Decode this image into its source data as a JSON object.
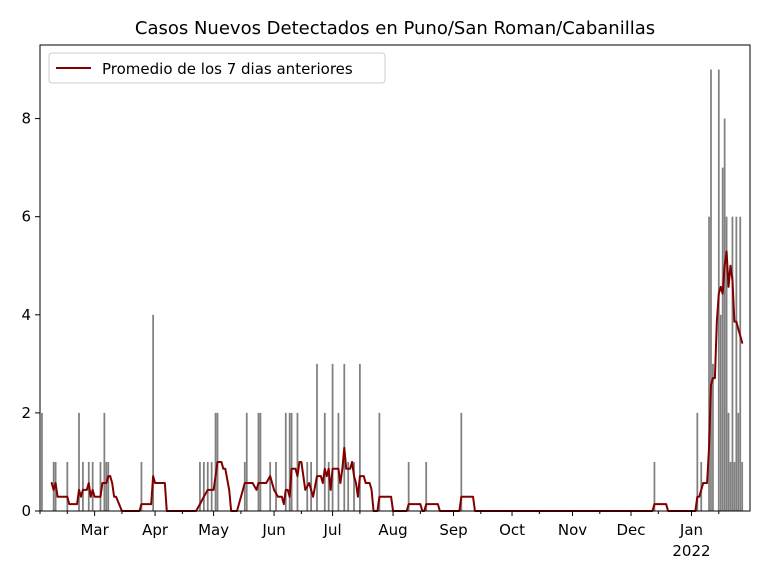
{
  "chart_data": {
    "type": "bar",
    "title": "Casos Nuevos Detectados en Puno/San Roman/Cabanillas",
    "xlabel": "",
    "ylabel": "",
    "x_range": [
      "2021-02-01",
      "2022-01-31"
    ],
    "ylim": [
      0,
      9.5
    ],
    "grid": false,
    "legend_placement": "upper-left",
    "y_ticks": [
      {
        "value": 0,
        "label": "0"
      },
      {
        "value": 2,
        "label": "2"
      },
      {
        "value": 4,
        "label": "4"
      },
      {
        "value": 6,
        "label": "6"
      },
      {
        "value": 8,
        "label": "8"
      }
    ],
    "x_ticks": [
      {
        "date": "2021-03-01",
        "label": "Mar"
      },
      {
        "date": "2021-04-01",
        "label": "Apr"
      },
      {
        "date": "2021-05-01",
        "label": "May"
      },
      {
        "date": "2021-06-01",
        "label": "Jun"
      },
      {
        "date": "2021-07-01",
        "label": "Jul"
      },
      {
        "date": "2021-08-01",
        "label": "Aug"
      },
      {
        "date": "2021-09-01",
        "label": "Sep"
      },
      {
        "date": "2021-10-01",
        "label": "Oct"
      },
      {
        "date": "2021-11-01",
        "label": "Nov"
      },
      {
        "date": "2021-12-01",
        "label": "Dec"
      },
      {
        "date": "2022-01-01",
        "label": "Jan",
        "sublabel": "2022"
      }
    ],
    "bar_color": "#808080",
    "line_color": "#800000",
    "series": [
      {
        "kind": "bar",
        "name": "",
        "points": [
          [
            "2021-02-02",
            2
          ],
          [
            "2021-02-08",
            1
          ],
          [
            "2021-02-09",
            1
          ],
          [
            "2021-02-15",
            1
          ],
          [
            "2021-02-21",
            2
          ],
          [
            "2021-02-23",
            1
          ],
          [
            "2021-02-26",
            1
          ],
          [
            "2021-02-28",
            1
          ],
          [
            "2021-03-04",
            1
          ],
          [
            "2021-03-06",
            2
          ],
          [
            "2021-03-07",
            1
          ],
          [
            "2021-03-08",
            1
          ],
          [
            "2021-03-25",
            1
          ],
          [
            "2021-03-31",
            4
          ],
          [
            "2021-04-24",
            1
          ],
          [
            "2021-04-26",
            1
          ],
          [
            "2021-04-28",
            1
          ],
          [
            "2021-04-30",
            1
          ],
          [
            "2021-05-02",
            2
          ],
          [
            "2021-05-03",
            2
          ],
          [
            "2021-05-17",
            1
          ],
          [
            "2021-05-18",
            2
          ],
          [
            "2021-05-24",
            2
          ],
          [
            "2021-05-25",
            2
          ],
          [
            "2021-05-30",
            1
          ],
          [
            "2021-06-02",
            1
          ],
          [
            "2021-06-07",
            2
          ],
          [
            "2021-06-09",
            2
          ],
          [
            "2021-06-10",
            2
          ],
          [
            "2021-06-13",
            2
          ],
          [
            "2021-06-18",
            1
          ],
          [
            "2021-06-20",
            1
          ],
          [
            "2021-06-23",
            3
          ],
          [
            "2021-06-27",
            2
          ],
          [
            "2021-06-29",
            1
          ],
          [
            "2021-07-01",
            3
          ],
          [
            "2021-07-04",
            2
          ],
          [
            "2021-07-07",
            3
          ],
          [
            "2021-07-09",
            1
          ],
          [
            "2021-07-12",
            1
          ],
          [
            "2021-07-15",
            3
          ],
          [
            "2021-07-25",
            2
          ],
          [
            "2021-08-09",
            1
          ],
          [
            "2021-08-18",
            1
          ],
          [
            "2021-09-05",
            2
          ],
          [
            "2021-12-13",
            1
          ],
          [
            "2022-01-04",
            2
          ],
          [
            "2022-01-06",
            1
          ],
          [
            "2022-01-10",
            6
          ],
          [
            "2022-01-11",
            9
          ],
          [
            "2022-01-12",
            3
          ],
          [
            "2022-01-15",
            9
          ],
          [
            "2022-01-16",
            4
          ],
          [
            "2022-01-17",
            7
          ],
          [
            "2022-01-18",
            8
          ],
          [
            "2022-01-19",
            6
          ],
          [
            "2022-01-20",
            2
          ],
          [
            "2022-01-21",
            1
          ],
          [
            "2022-01-22",
            6
          ],
          [
            "2022-01-23",
            1
          ],
          [
            "2022-01-24",
            6
          ],
          [
            "2022-01-25",
            2
          ],
          [
            "2022-01-26",
            6
          ],
          [
            "2022-01-27",
            1
          ]
        ]
      },
      {
        "kind": "line",
        "name": "Promedio de los 7 dias anteriores",
        "points": [
          [
            "2021-02-07",
            0.57
          ],
          [
            "2021-02-08",
            0.43
          ],
          [
            "2021-02-09",
            0.57
          ],
          [
            "2021-02-10",
            0.29
          ],
          [
            "2021-02-15",
            0.29
          ],
          [
            "2021-02-16",
            0.14
          ],
          [
            "2021-02-20",
            0.14
          ],
          [
            "2021-02-21",
            0.43
          ],
          [
            "2021-02-22",
            0.29
          ],
          [
            "2021-02-23",
            0.43
          ],
          [
            "2021-02-25",
            0.43
          ],
          [
            "2021-02-26",
            0.57
          ],
          [
            "2021-02-27",
            0.29
          ],
          [
            "2021-02-28",
            0.43
          ],
          [
            "2021-03-01",
            0.29
          ],
          [
            "2021-03-04",
            0.29
          ],
          [
            "2021-03-05",
            0.57
          ],
          [
            "2021-03-07",
            0.57
          ],
          [
            "2021-03-08",
            0.71
          ],
          [
            "2021-03-09",
            0.71
          ],
          [
            "2021-03-10",
            0.57
          ],
          [
            "2021-03-11",
            0.29
          ],
          [
            "2021-03-12",
            0.29
          ],
          [
            "2021-03-15",
            0.0
          ],
          [
            "2021-03-24",
            0.0
          ],
          [
            "2021-03-25",
            0.14
          ],
          [
            "2021-03-30",
            0.14
          ],
          [
            "2021-03-31",
            0.71
          ],
          [
            "2021-04-01",
            0.57
          ],
          [
            "2021-04-06",
            0.57
          ],
          [
            "2021-04-07",
            0.0
          ],
          [
            "2021-04-22",
            0.0
          ],
          [
            "2021-04-24",
            0.14
          ],
          [
            "2021-04-26",
            0.29
          ],
          [
            "2021-04-28",
            0.43
          ],
          [
            "2021-05-01",
            0.43
          ],
          [
            "2021-05-02",
            0.71
          ],
          [
            "2021-05-03",
            1.0
          ],
          [
            "2021-05-05",
            1.0
          ],
          [
            "2021-05-06",
            0.86
          ],
          [
            "2021-05-07",
            0.86
          ],
          [
            "2021-05-09",
            0.43
          ],
          [
            "2021-05-10",
            0.0
          ],
          [
            "2021-05-13",
            0.0
          ],
          [
            "2021-05-17",
            0.57
          ],
          [
            "2021-05-21",
            0.57
          ],
          [
            "2021-05-23",
            0.43
          ],
          [
            "2021-05-24",
            0.57
          ],
          [
            "2021-05-28",
            0.57
          ],
          [
            "2021-05-30",
            0.71
          ],
          [
            "2021-06-01",
            0.43
          ],
          [
            "2021-06-03",
            0.29
          ],
          [
            "2021-06-05",
            0.29
          ],
          [
            "2021-06-06",
            0.14
          ],
          [
            "2021-06-07",
            0.43
          ],
          [
            "2021-06-08",
            0.43
          ],
          [
            "2021-06-09",
            0.29
          ],
          [
            "2021-06-10",
            0.86
          ],
          [
            "2021-06-12",
            0.86
          ],
          [
            "2021-06-13",
            0.71
          ],
          [
            "2021-06-14",
            1.0
          ],
          [
            "2021-06-15",
            1.0
          ],
          [
            "2021-06-17",
            0.43
          ],
          [
            "2021-06-19",
            0.57
          ],
          [
            "2021-06-21",
            0.29
          ],
          [
            "2021-06-23",
            0.71
          ],
          [
            "2021-06-25",
            0.71
          ],
          [
            "2021-06-26",
            0.57
          ],
          [
            "2021-06-27",
            0.86
          ],
          [
            "2021-06-28",
            0.71
          ],
          [
            "2021-06-29",
            0.86
          ],
          [
            "2021-06-30",
            0.43
          ],
          [
            "2021-07-01",
            0.86
          ],
          [
            "2021-07-04",
            0.86
          ],
          [
            "2021-07-05",
            0.57
          ],
          [
            "2021-07-06",
            0.86
          ],
          [
            "2021-07-07",
            1.29
          ],
          [
            "2021-07-08",
            0.86
          ],
          [
            "2021-07-10",
            0.86
          ],
          [
            "2021-07-11",
            1.0
          ],
          [
            "2021-07-12",
            0.71
          ],
          [
            "2021-07-13",
            0.57
          ],
          [
            "2021-07-14",
            0.29
          ],
          [
            "2021-07-15",
            0.71
          ],
          [
            "2021-07-17",
            0.71
          ],
          [
            "2021-07-18",
            0.57
          ],
          [
            "2021-07-20",
            0.57
          ],
          [
            "2021-07-21",
            0.43
          ],
          [
            "2021-07-22",
            0.0
          ],
          [
            "2021-07-24",
            0.0
          ],
          [
            "2021-07-25",
            0.29
          ],
          [
            "2021-07-31",
            0.29
          ],
          [
            "2021-08-01",
            0.0
          ],
          [
            "2021-08-08",
            0.0
          ],
          [
            "2021-08-09",
            0.14
          ],
          [
            "2021-08-15",
            0.14
          ],
          [
            "2021-08-16",
            0.0
          ],
          [
            "2021-08-17",
            0.0
          ],
          [
            "2021-08-18",
            0.14
          ],
          [
            "2021-08-24",
            0.14
          ],
          [
            "2021-08-25",
            0.0
          ],
          [
            "2021-09-04",
            0.0
          ],
          [
            "2021-09-05",
            0.29
          ],
          [
            "2021-09-11",
            0.29
          ],
          [
            "2021-09-12",
            0.0
          ],
          [
            "2021-12-12",
            0.0
          ],
          [
            "2021-12-13",
            0.14
          ],
          [
            "2021-12-19",
            0.14
          ],
          [
            "2021-12-20",
            0.0
          ],
          [
            "2022-01-03",
            0.0
          ],
          [
            "2022-01-04",
            0.29
          ],
          [
            "2022-01-05",
            0.29
          ],
          [
            "2022-01-06",
            0.43
          ],
          [
            "2022-01-07",
            0.57
          ],
          [
            "2022-01-09",
            0.57
          ],
          [
            "2022-01-10",
            1.29
          ],
          [
            "2022-01-11",
            2.57
          ],
          [
            "2022-01-12",
            2.71
          ],
          [
            "2022-01-13",
            2.71
          ],
          [
            "2022-01-14",
            3.86
          ],
          [
            "2022-01-15",
            4.43
          ],
          [
            "2022-01-16",
            4.57
          ],
          [
            "2022-01-17",
            4.43
          ],
          [
            "2022-01-18",
            5.0
          ],
          [
            "2022-01-19",
            5.29
          ],
          [
            "2022-01-20",
            4.57
          ],
          [
            "2022-01-21",
            5.0
          ],
          [
            "2022-01-22",
            4.71
          ],
          [
            "2022-01-23",
            3.86
          ],
          [
            "2022-01-24",
            3.86
          ],
          [
            "2022-01-25",
            3.71
          ],
          [
            "2022-01-26",
            3.57
          ],
          [
            "2022-01-27",
            3.43
          ]
        ]
      }
    ]
  }
}
